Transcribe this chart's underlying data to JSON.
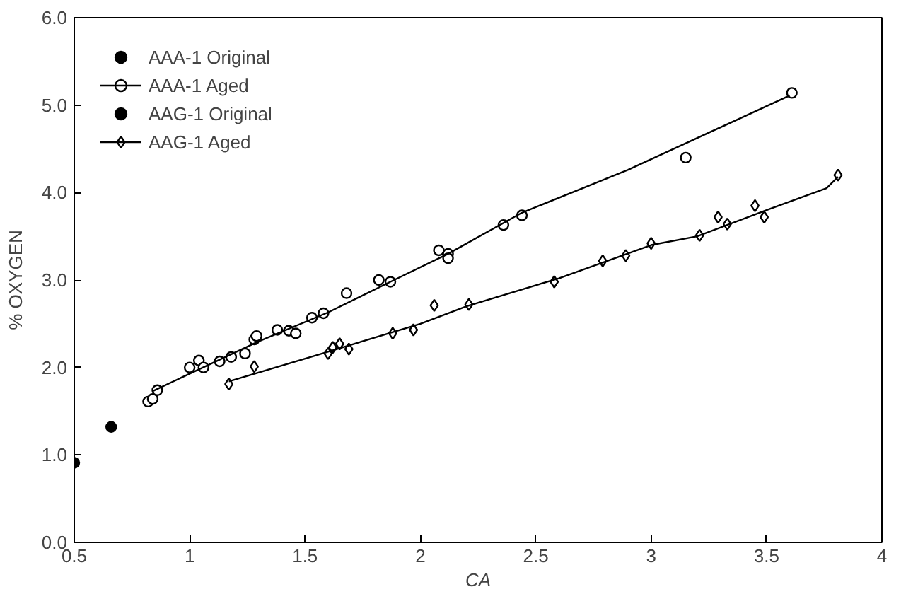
{
  "chart_data": {
    "type": "scatter",
    "xlabel": "CA",
    "ylabel": "% OXYGEN",
    "xlim": [
      0.5,
      4
    ],
    "ylim": [
      0,
      6
    ],
    "xticks": [
      0.5,
      1,
      1.5,
      2,
      2.5,
      3,
      3.5,
      4
    ],
    "yticks": [
      {
        "value": 0,
        "label": "0.0"
      },
      {
        "value": 1,
        "label": "1.0"
      },
      {
        "value": 2,
        "label": "2.0"
      },
      {
        "value": 3,
        "label": "3.0"
      },
      {
        "value": 4,
        "label": "4.0"
      },
      {
        "value": 5,
        "label": "5.0"
      },
      {
        "value": 6,
        "label": "6.0"
      }
    ],
    "grid": false,
    "legend": "top left",
    "series": [
      {
        "name": "AAA-1 Original",
        "marker": "circle",
        "color": "#000000",
        "x": [
          0.66
        ],
        "values": [
          1.32
        ]
      },
      {
        "name": "AAA-1 Aged",
        "marker": "circle",
        "color": "#000000",
        "x": [
          0.82,
          0.84,
          0.86,
          1.0,
          1.04,
          1.06,
          1.13,
          1.18,
          1.24,
          1.28,
          1.29,
          1.38,
          1.43,
          1.46,
          1.53,
          1.58,
          1.68,
          1.82,
          1.87,
          2.08,
          2.12,
          2.12,
          2.36,
          2.44,
          3.15,
          3.61
        ],
        "values": [
          1.61,
          1.64,
          1.74,
          2.0,
          2.08,
          2.0,
          2.07,
          2.12,
          2.16,
          2.32,
          2.36,
          2.43,
          2.42,
          2.39,
          2.57,
          2.62,
          2.85,
          3.0,
          2.98,
          3.34,
          3.3,
          3.25,
          3.63,
          3.74,
          4.4,
          5.14
        ]
      },
      {
        "type": "line",
        "color": "#000000",
        "x": [
          0.84,
          1.3,
          1.6,
          1.87,
          2.12,
          2.44,
          2.9,
          3.6
        ],
        "values": [
          1.73,
          2.3,
          2.63,
          2.98,
          3.3,
          3.77,
          4.26,
          5.11
        ]
      },
      {
        "name": "AAG-1 Original",
        "marker": "circle",
        "color": "#000000",
        "x": [
          0.5
        ],
        "values": [
          0.91
        ]
      },
      {
        "name": "AAG-1 Aged",
        "marker": "diamond",
        "color": "#000000",
        "x": [
          1.17,
          1.28,
          1.6,
          1.62,
          1.65,
          1.69,
          1.88,
          1.97,
          2.06,
          2.21,
          2.58,
          2.79,
          2.89,
          3.0,
          3.21,
          3.29,
          3.33,
          3.45,
          3.49,
          3.81
        ],
        "values": [
          1.81,
          2.01,
          2.16,
          2.23,
          2.27,
          2.21,
          2.39,
          2.43,
          2.71,
          2.72,
          2.98,
          3.22,
          3.28,
          3.42,
          3.51,
          3.72,
          3.64,
          3.85,
          3.72,
          4.2
        ]
      },
      {
        "type": "line",
        "color": "#000000",
        "x": [
          1.17,
          1.6,
          2.0,
          2.2,
          2.6,
          3.0,
          3.2,
          3.5,
          3.76,
          3.81
        ],
        "values": [
          1.84,
          2.18,
          2.5,
          2.7,
          3.02,
          3.4,
          3.5,
          3.8,
          4.05,
          4.18
        ]
      }
    ]
  }
}
